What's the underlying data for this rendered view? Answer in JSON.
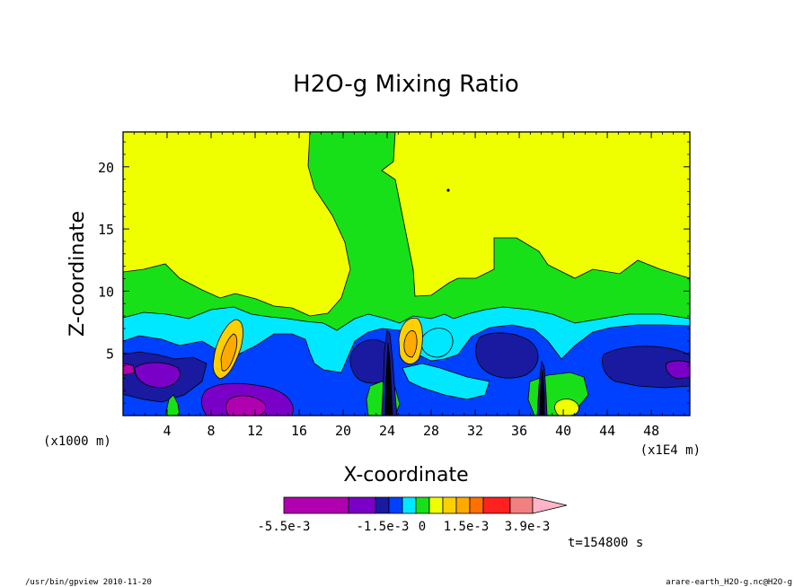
{
  "chart_data": {
    "type": "heatmap",
    "title": "H2O-g Mixing Ratio",
    "xlabel": "X-coordinate",
    "ylabel": "Z-coordinate",
    "x_units_label": "(x1E4 m)",
    "y_units_label": "(x1000 m)",
    "x_ticks": [
      4,
      8,
      12,
      16,
      20,
      24,
      28,
      32,
      36,
      40,
      44,
      48
    ],
    "y_ticks": [
      5,
      10,
      15,
      20
    ],
    "xlim": [
      0,
      51.5
    ],
    "ylim": [
      0,
      22.8
    ],
    "colorbar": {
      "colors": [
        "#b000b0",
        "#7a00c8",
        "#1a1aa0",
        "#0040ff",
        "#00e8ff",
        "#18e018",
        "#f0ff00",
        "#ffd000",
        "#ffaa00",
        "#ff7000",
        "#ff2020",
        "#f28080",
        "#ffb4c8"
      ],
      "tick_labels": [
        "-5.5e-3",
        "-1.5e-3",
        "0",
        "1.5e-3",
        "3.9e-3"
      ]
    },
    "time_label": "t=154800 s"
  },
  "footer": {
    "left": "/usr/bin/gpview  2010-11-20",
    "right": "arare-earth_H2O-g.nc@H2O-g"
  }
}
